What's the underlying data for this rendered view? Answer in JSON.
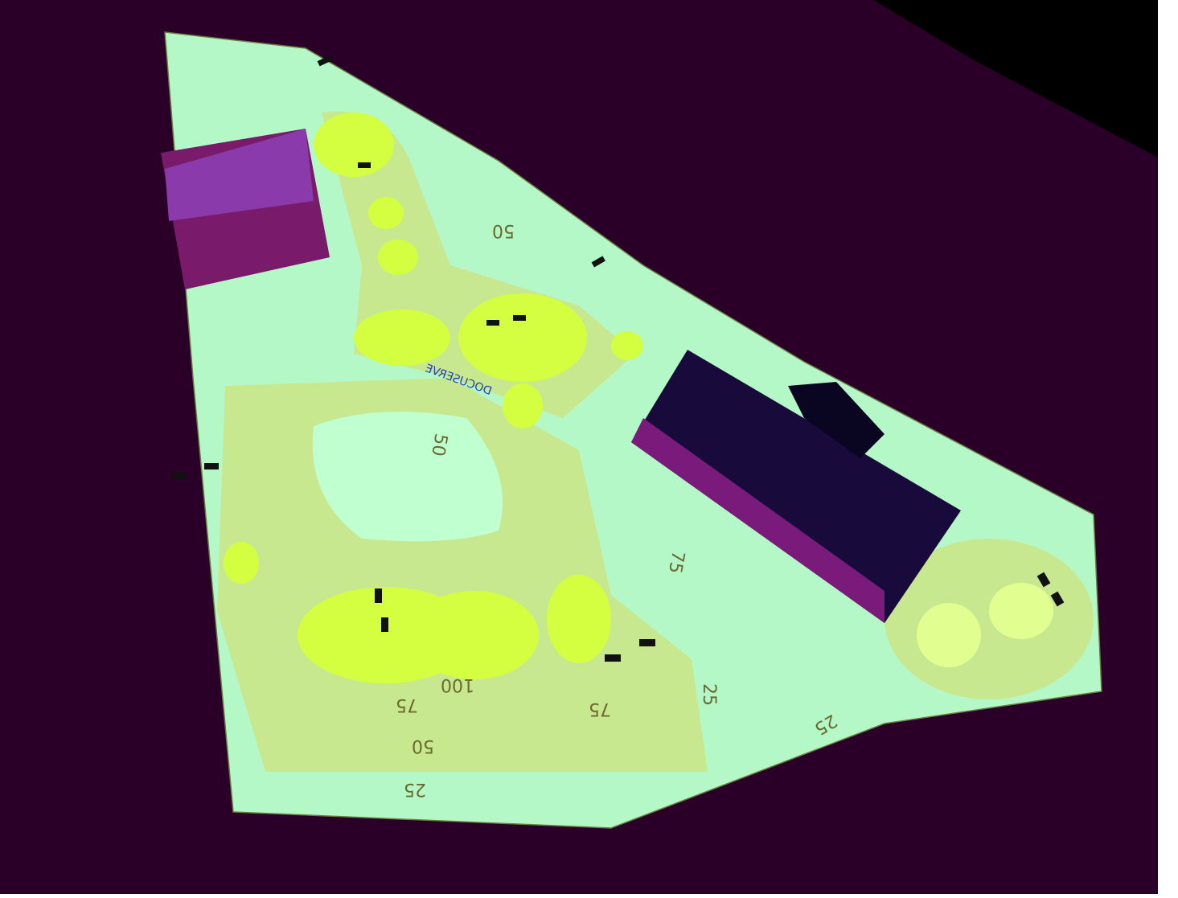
{
  "labels": {
    "site": "DOCUSERVE",
    "contours": [
      "25",
      "50",
      "75",
      "100",
      "25",
      "50",
      "75",
      "25",
      "50",
      "75"
    ]
  }
}
